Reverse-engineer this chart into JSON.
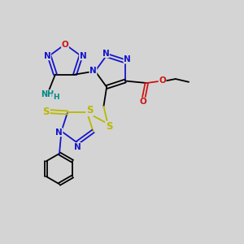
{
  "bg_color": "#d4d4d4",
  "atom_colors": {
    "C": "#000000",
    "N": "#1414cc",
    "O": "#cc1414",
    "S": "#b8b800",
    "H": "#008888"
  },
  "bond_lw": 1.3,
  "font_size": 7.5,
  "figsize": [
    3.0,
    3.0
  ],
  "dpi": 100
}
